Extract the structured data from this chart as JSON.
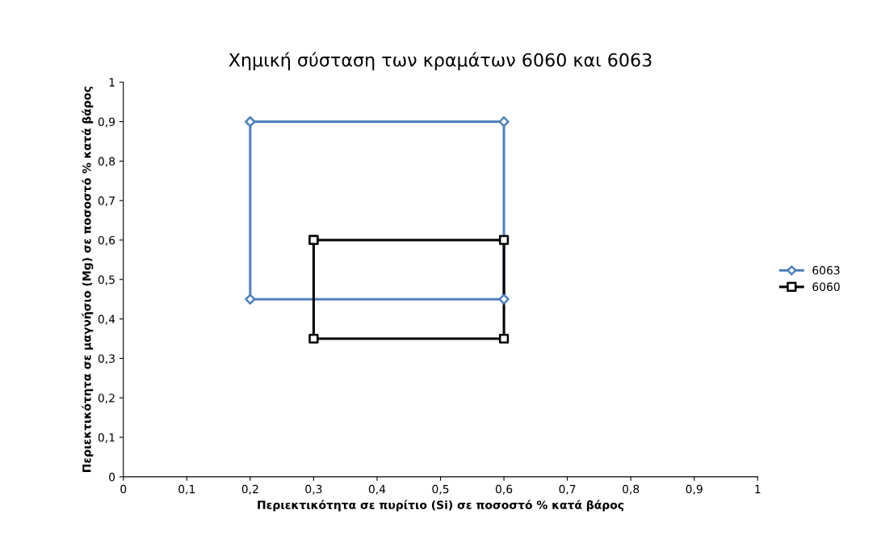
{
  "chart_data": {
    "type": "scatter",
    "title": "Χημική σύσταση των κραμάτων 6060 και 6063",
    "xlabel": "Περιεκτικότητα σε πυρίτιο (Si) σε ποσοστό % κατά βάρος",
    "ylabel": "Περιεκτικότητα σε μαγνήσιο (Mg) σε ποσοστό % κατά βάρος",
    "series": [
      {
        "name": "6063",
        "color": "#4f81bd",
        "marker": "diamond",
        "x": [
          0.2,
          0.6,
          0.6,
          0.2,
          0.2
        ],
        "values": [
          0.9,
          0.9,
          0.45,
          0.45,
          0.9
        ]
      },
      {
        "name": "6060",
        "color": "#000000",
        "marker": "square",
        "x": [
          0.3,
          0.6,
          0.6,
          0.3,
          0.3
        ],
        "values": [
          0.6,
          0.6,
          0.35,
          0.35,
          0.6
        ]
      }
    ],
    "xlim": [
      0,
      1
    ],
    "ylim": [
      0,
      1
    ],
    "xticks": [
      0,
      {
        "value": 0.1,
        "label": "0,1"
      },
      {
        "value": 0.2,
        "label": "0,2"
      },
      {
        "value": 0.3,
        "label": "0,3"
      },
      {
        "value": 0.4,
        "label": "0,4"
      },
      {
        "value": 0.5,
        "label": "0,5"
      },
      {
        "value": 0.6,
        "label": "0,6"
      },
      {
        "value": 0.7,
        "label": "0,7"
      },
      {
        "value": 0.8,
        "label": "0,8"
      },
      {
        "value": 0.9,
        "label": "0,9"
      },
      1
    ],
    "yticks": [
      0,
      {
        "value": 0.1,
        "label": "0,1"
      },
      {
        "value": 0.2,
        "label": "0,2"
      },
      {
        "value": 0.3,
        "label": "0,3"
      },
      {
        "value": 0.4,
        "label": "0,4"
      },
      {
        "value": 0.5,
        "label": "0,5"
      },
      {
        "value": 0.6,
        "label": "0,6"
      },
      {
        "value": 0.7,
        "label": "0,7"
      },
      {
        "value": 0.8,
        "label": "0,8"
      },
      {
        "value": 0.9,
        "label": "0,9"
      },
      1
    ],
    "grid": false,
    "legend": "right",
    "line_style": "solid"
  }
}
